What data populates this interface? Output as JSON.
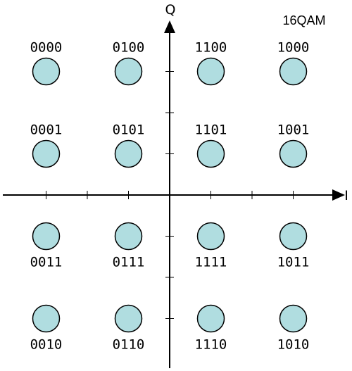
{
  "title": "16QAM",
  "axes": {
    "x_label": "I",
    "y_label": "Q"
  },
  "colors": {
    "point_fill": "#b0dde0",
    "point_stroke": "#000000",
    "axis": "#000000"
  },
  "constellation": [
    {
      "bits": "0000",
      "i": -3,
      "q": 3
    },
    {
      "bits": "0100",
      "i": -1,
      "q": 3
    },
    {
      "bits": "1100",
      "i": 1,
      "q": 3
    },
    {
      "bits": "1000",
      "i": 3,
      "q": 3
    },
    {
      "bits": "0001",
      "i": -3,
      "q": 1
    },
    {
      "bits": "0101",
      "i": -1,
      "q": 1
    },
    {
      "bits": "1101",
      "i": 1,
      "q": 1
    },
    {
      "bits": "1001",
      "i": 3,
      "q": 1
    },
    {
      "bits": "0011",
      "i": -3,
      "q": -1
    },
    {
      "bits": "0111",
      "i": -1,
      "q": -1
    },
    {
      "bits": "1111",
      "i": 1,
      "q": -1
    },
    {
      "bits": "1011",
      "i": 3,
      "q": -1
    },
    {
      "bits": "0010",
      "i": -3,
      "q": -3
    },
    {
      "bits": "0110",
      "i": -1,
      "q": -3
    },
    {
      "bits": "1110",
      "i": 1,
      "q": -3
    },
    {
      "bits": "1010",
      "i": 3,
      "q": -3
    }
  ]
}
